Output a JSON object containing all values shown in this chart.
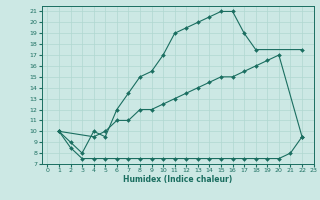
{
  "title": "",
  "xlabel": "Humidex (Indice chaleur)",
  "bg_color": "#cce8e4",
  "grid_color": "#b0d8d0",
  "line_color": "#1a6e60",
  "xlim": [
    -0.5,
    23
  ],
  "ylim": [
    7,
    21.5
  ],
  "yticks": [
    7,
    8,
    9,
    10,
    11,
    12,
    13,
    14,
    15,
    16,
    17,
    18,
    19,
    20,
    21
  ],
  "xticks": [
    0,
    1,
    2,
    3,
    4,
    5,
    6,
    7,
    8,
    9,
    10,
    11,
    12,
    13,
    14,
    15,
    16,
    17,
    18,
    19,
    20,
    21,
    22,
    23
  ],
  "line1_x": [
    1,
    2,
    3,
    4,
    5,
    6,
    7,
    8,
    9,
    10,
    11,
    12,
    13,
    14,
    15,
    16,
    17,
    18,
    22
  ],
  "line1_y": [
    10,
    9,
    8,
    10,
    9.5,
    12,
    13.5,
    15,
    15.5,
    17,
    19,
    19.5,
    20,
    20.5,
    21,
    21,
    19,
    17.5,
    17.5
  ],
  "line2_x": [
    1,
    4,
    5,
    6,
    7,
    8,
    9,
    10,
    11,
    12,
    13,
    14,
    15,
    16,
    17,
    18,
    19,
    20,
    22
  ],
  "line2_y": [
    10,
    9.5,
    10,
    11,
    11,
    12,
    12,
    12.5,
    13,
    13.5,
    14,
    14.5,
    15,
    15,
    15.5,
    16,
    16.5,
    17,
    9.5
  ],
  "line3_x": [
    1,
    2,
    3,
    4,
    5,
    6,
    7,
    8,
    9,
    10,
    11,
    12,
    13,
    14,
    15,
    16,
    17,
    18,
    19,
    20,
    21,
    22
  ],
  "line3_y": [
    10,
    8.5,
    7.5,
    7.5,
    7.5,
    7.5,
    7.5,
    7.5,
    7.5,
    7.5,
    7.5,
    7.5,
    7.5,
    7.5,
    7.5,
    7.5,
    7.5,
    7.5,
    7.5,
    7.5,
    8,
    9.5
  ]
}
